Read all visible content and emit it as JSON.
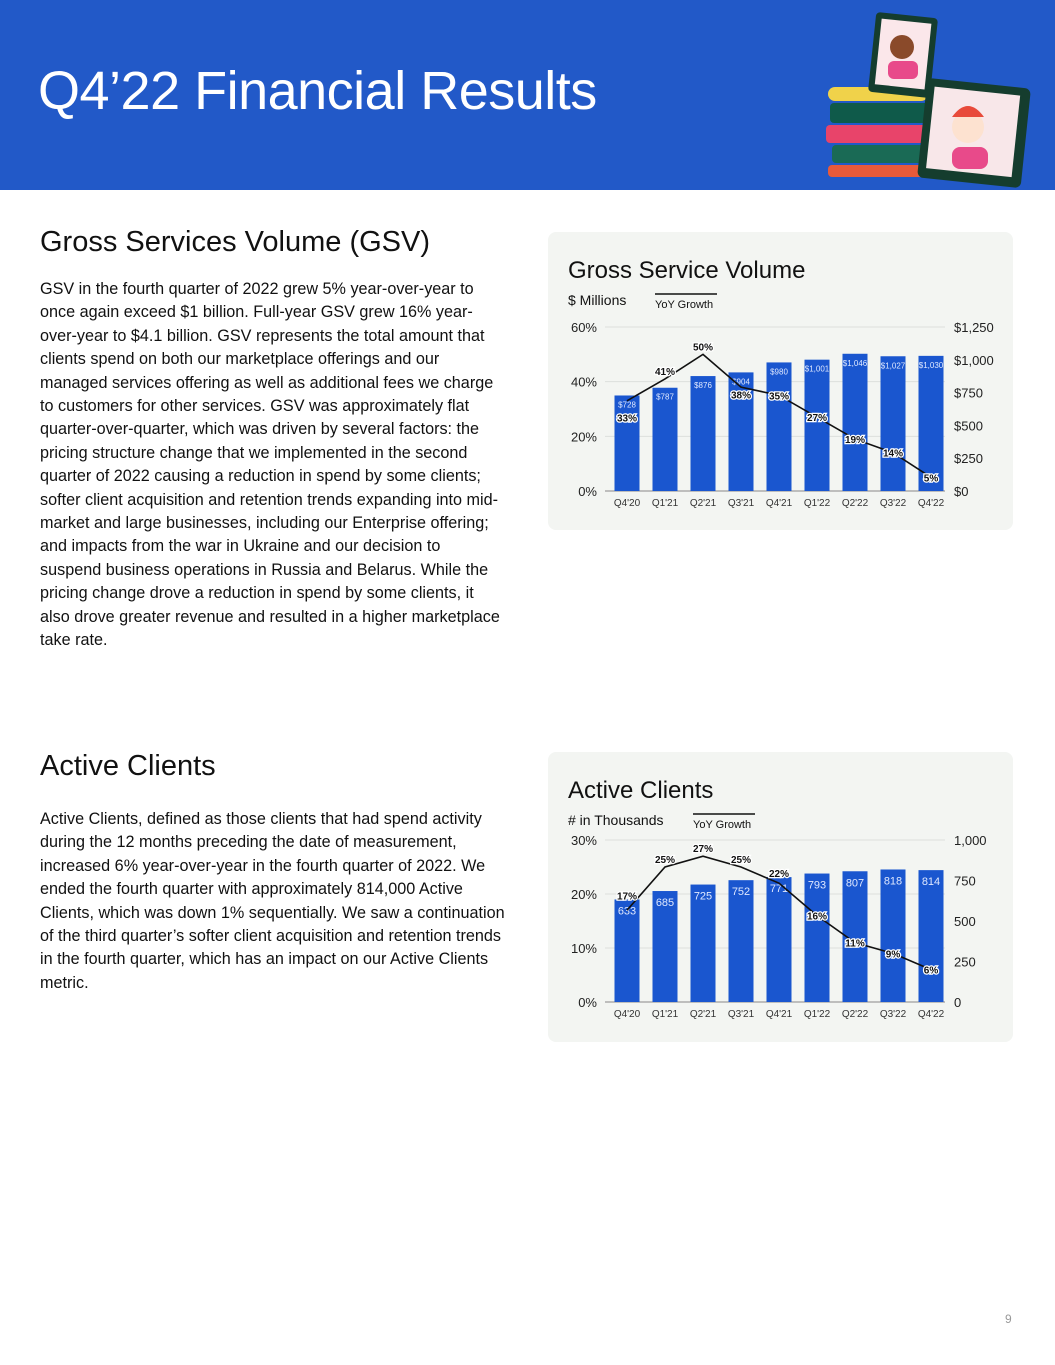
{
  "header": {
    "title": "Q4’22 Financial Results"
  },
  "sections": [
    {
      "heading": "Gross Services Volume (GSV)",
      "body": "GSV in the fourth quarter of 2022 grew 5% year-over-year to once again exceed $1 billion. Full-year GSV grew 16% year-over-year to $4.1 billion. GSV represents the total amount that clients spend on both our marketplace offerings and our managed services offering as well as additional fees we charge to customers for other services. GSV was approximately flat quarter-over-quarter, which was driven by several factors: the pricing structure change that we implemented in the second quarter of 2022 causing a reduction in spend by some clients; softer client acquisition and retention trends expanding into mid-market and large businesses, including our Enterprise offering; and impacts from the war in Ukraine and our decision to suspend business operations in Russia and Belarus. While the pricing change drove a reduction in spend by some clients, it also drove greater revenue and resulted in a higher marketplace take rate."
    },
    {
      "heading": "Active Clients",
      "body": "Active Clients, defined as those clients that had spend activity during the 12 months preceding the date of measurement, increased 6% year-over-year in the fourth quarter of 2022. We ended the fourth quarter with approximately 814,000 Active Clients, which was down 1% sequentially. We saw a continuation of the third quarter’s softer client acquisition and retention trends in the fourth quarter, which has an impact on our Active Clients metric."
    }
  ],
  "page_number": "9",
  "colors": {
    "header": "#2259c8",
    "bar": "#1a56cf",
    "line": "#111111",
    "card": "#f3f5f2"
  },
  "chart_data": [
    {
      "type": "bar",
      "title": "Gross Service Volume",
      "unit_label": "$ Millions",
      "legend": "YoY Growth",
      "legend_placement": "top-left",
      "categories": [
        "Q4'20",
        "Q1'21",
        "Q2'21",
        "Q3'21",
        "Q4'21",
        "Q1'22",
        "Q2'22",
        "Q3'22",
        "Q4'22"
      ],
      "bar_values": [
        728,
        787,
        876,
        904,
        980,
        1001,
        1046,
        1027,
        1030
      ],
      "bar_labels": [
        "$728",
        "$787",
        "$876",
        "$904",
        "$980",
        "$1,001",
        "$1,046",
        "$1,027",
        "$1,030"
      ],
      "line_values": [
        33,
        41,
        50,
        38,
        35,
        27,
        19,
        14,
        5
      ],
      "line_labels": [
        "33%",
        "41%",
        "50%",
        "38%",
        "35%",
        "27%",
        "19%",
        "14%",
        "5%"
      ],
      "left_axis": {
        "range": [
          0,
          60
        ],
        "ticks": [
          "0%",
          "20%",
          "40%",
          "60%"
        ]
      },
      "right_axis": {
        "range": [
          0,
          1250
        ],
        "ticks": [
          "$0",
          "$250",
          "$500",
          "$750",
          "$1,000",
          "$1,250"
        ]
      },
      "grid": true
    },
    {
      "type": "bar",
      "title": "Active Clients",
      "unit_label": "# in Thousands",
      "legend": "YoY Growth",
      "legend_placement": "top-left",
      "categories": [
        "Q4'20",
        "Q1'21",
        "Q2'21",
        "Q3'21",
        "Q4'21",
        "Q1'22",
        "Q2'22",
        "Q3'22",
        "Q4'22"
      ],
      "bar_values": [
        633,
        685,
        725,
        752,
        771,
        793,
        807,
        818,
        814
      ],
      "bar_labels": [
        "633",
        "685",
        "725",
        "752",
        "771",
        "793",
        "807",
        "818",
        "814"
      ],
      "line_values": [
        17,
        25,
        27,
        25,
        22,
        16,
        11,
        9,
        6
      ],
      "line_labels": [
        "17%",
        "25%",
        "27%",
        "25%",
        "22%",
        "16%",
        "11%",
        "9%",
        "6%"
      ],
      "left_axis": {
        "range": [
          0,
          30
        ],
        "ticks": [
          "0%",
          "10%",
          "20%",
          "30%"
        ]
      },
      "right_axis": {
        "range": [
          0,
          1000
        ],
        "ticks": [
          "0",
          "250",
          "500",
          "750",
          "1,000"
        ]
      },
      "grid": true
    }
  ]
}
